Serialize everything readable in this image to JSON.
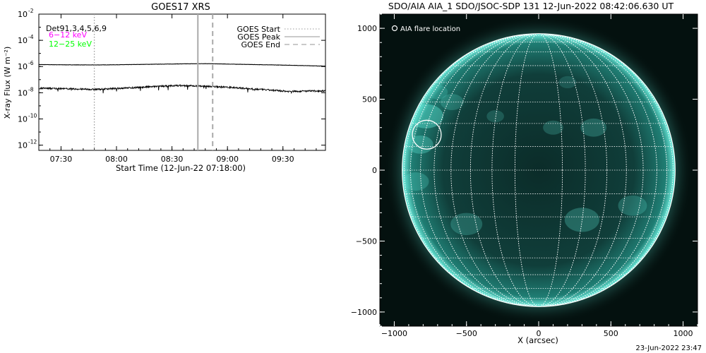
{
  "chart_data": [
    {
      "type": "line",
      "title": "GOES17 XRS",
      "xlabel": "Start Time (12-Jun-22 07:18:00)",
      "ylabel": "X-ray Flux (W m⁻²)",
      "y_scale": "log",
      "xlim_minutes_from_start": [
        0,
        155
      ],
      "x_ticks": [
        {
          "label": "07:30",
          "minutes": 12
        },
        {
          "label": "08:00",
          "minutes": 42
        },
        {
          "label": "08:30",
          "minutes": 72
        },
        {
          "label": "09:00",
          "minutes": 102
        },
        {
          "label": "09:30",
          "minutes": 132
        }
      ],
      "ylim_exponent": [
        -12.4,
        -2
      ],
      "y_ticks": [
        {
          "base": "10",
          "exp": "-2"
        },
        {
          "base": "10",
          "exp": "-4"
        },
        {
          "base": "10",
          "exp": "-6"
        },
        {
          "base": "10",
          "exp": "-8"
        },
        {
          "base": "10",
          "exp": "-10"
        },
        {
          "base": "10",
          "exp": "-12"
        }
      ],
      "annotations": {
        "det": "Det91,3,4,5,6,9",
        "band_low": "6−12 keV",
        "band_high": "12−25 keV"
      },
      "legend": {
        "placement": "top-right",
        "entries": [
          {
            "label": "GOES Start",
            "style": "dotted",
            "minutes": 30
          },
          {
            "label": "GOES Peak",
            "style": "solid",
            "minutes": 86
          },
          {
            "label": "GOES End",
            "style": "dashed",
            "minutes": 94
          }
        ]
      },
      "series": [
        {
          "color": "#000000",
          "x_minutes": [
            0,
            15,
            30,
            45,
            60,
            75,
            90,
            105,
            120,
            135,
            155
          ],
          "log_flux": [
            -5.85,
            -5.87,
            -5.88,
            -5.86,
            -5.83,
            -5.8,
            -5.78,
            -5.82,
            -5.86,
            -5.9,
            -5.97
          ]
        },
        {
          "color": "#000000",
          "x_minutes": [
            0,
            15,
            30,
            45,
            60,
            75,
            90,
            105,
            120,
            135,
            155
          ],
          "log_flux": [
            -7.65,
            -7.7,
            -7.75,
            -7.65,
            -7.55,
            -7.45,
            -7.5,
            -7.6,
            -7.75,
            -7.9,
            -7.85
          ]
        }
      ],
      "colors": {
        "band_low": "#ff00ff",
        "band_high": "#00ff00"
      }
    },
    {
      "type": "image",
      "title": "SDO/AIA AIA_1 SDO/JSOC-SDP 131 12-Jun-2022 08:42:06.630 UT",
      "xlabel": "X (arcsec)",
      "ylabel": "",
      "xlim": [
        -1100,
        1100
      ],
      "ylim": [
        -1100,
        1100
      ],
      "x_ticks": [
        -1000,
        -500,
        0,
        500,
        1000
      ],
      "y_ticks": [
        -1000,
        -500,
        0,
        500,
        1000
      ],
      "tick_labels_x": [
        "−1000",
        "−500",
        "0",
        "500",
        "1000"
      ],
      "tick_labels_y": [
        "−1000",
        "−500",
        "0",
        "500",
        "1000"
      ],
      "solar_radius_arcsec": 945,
      "grid": true,
      "legend_text": "AIA flare location",
      "flare_location_arcsec": [
        -775,
        250
      ],
      "flare_radius_arcsec": 100,
      "colors": {
        "disk": "#0f3a36",
        "bright": "#5fe8d8",
        "background": "#04110f"
      }
    }
  ],
  "footer": {
    "timestamp": "23-Jun-2022 23:47"
  }
}
